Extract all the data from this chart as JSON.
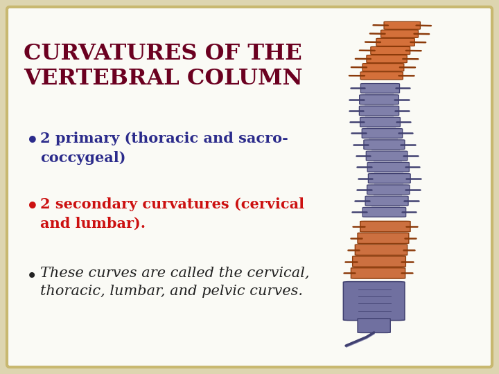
{
  "title_line1": "CURVATURES OF THE",
  "title_line2": "VERTEBRAL COLUMN",
  "title_color": "#6B0020",
  "title_fontsize": 23,
  "bullet1_text": "2 primary (thoracic and sacro-\ncoccygeal)",
  "bullet1_color": "#2B2B8B",
  "bullet2_text": "2 secondary curvatures (cervical\nand lumbar).",
  "bullet2_color": "#CC1010",
  "bullet3_text": "These curves are called the cervical,\nthoracic, lumbar, and pelvic curves.",
  "bullet3_color": "#222222",
  "bullet_fontsize": 15,
  "bg_outer": "#ddd5b0",
  "bg_inner": "#fafaf5",
  "border_color": "#c8b870",
  "cervical_color": "#D4703A",
  "cervical_edge": "#8B3A0A",
  "thoracic_color": "#8080AA",
  "thoracic_edge": "#404070",
  "lumbar_color": "#CC7040",
  "lumbar_edge": "#8B3A0A",
  "sacral_color": "#7070A0",
  "sacral_edge": "#404070"
}
